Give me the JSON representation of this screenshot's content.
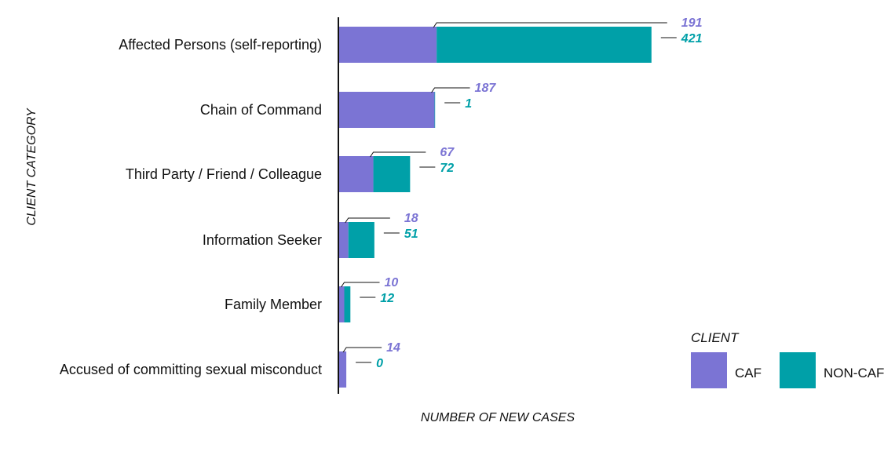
{
  "chart_data": {
    "type": "bar",
    "orientation": "horizontal",
    "stacked": true,
    "categories": [
      "Affected Persons (self-reporting)",
      "Chain of Command",
      "Third Party / Friend / Colleague",
      "Information Seeker",
      "Family Member",
      "Accused of committing sexual misconduct"
    ],
    "series": [
      {
        "name": "CAF",
        "values": [
          191,
          187,
          67,
          18,
          10,
          14
        ],
        "color": "#7b74d4"
      },
      {
        "name": "NON-CAF",
        "values": [
          421,
          1,
          72,
          51,
          12,
          0
        ],
        "color": "#00a0a8"
      }
    ],
    "xlabel": "NUMBER OF NEW CASES",
    "ylabel": "CLIENT CATEGORY",
    "xlim": [
      0,
      620
    ],
    "grid": false,
    "legend": {
      "title": "CLIENT",
      "position": "bottom-right"
    }
  }
}
